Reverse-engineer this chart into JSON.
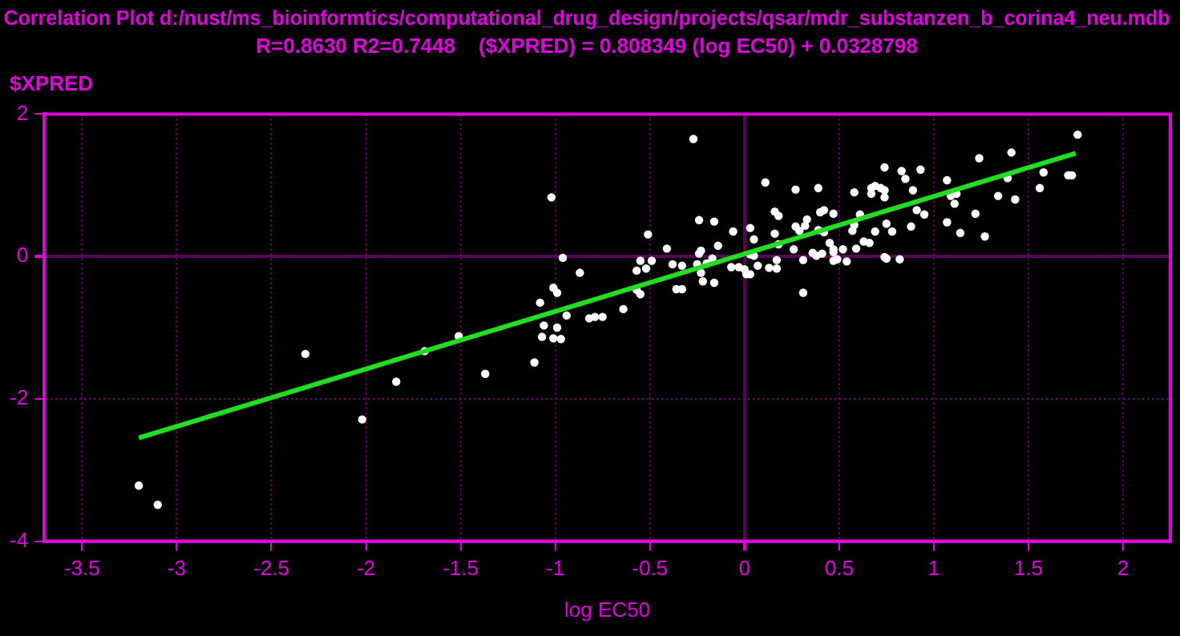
{
  "chart_data": {
    "type": "scatter",
    "title": "Correlation Plot d:/nust/ms_bioinformtics/computational_drug_design/projects/qsar/mdr_substanzen_b_corina4_neu.mdb",
    "subtitle": "R=0.8630 R2=0.7448    ($XPRED) = 0.808349 (log EC50) + 0.0328798",
    "xlabel": "log EC50",
    "ylabel": "$XPRED",
    "xlim": [
      -3.7,
      2.25
    ],
    "ylim": [
      -4,
      2
    ],
    "xticks": [
      -3.5,
      -3,
      -2.5,
      -2,
      -1.5,
      -1,
      -0.5,
      0,
      0.5,
      1,
      1.5,
      2
    ],
    "yticks": [
      -4,
      -2,
      0,
      2
    ],
    "grid": true,
    "legend": false,
    "marker": "circle",
    "series": [
      {
        "color": "#ffffff",
        "x": [
          -3.2,
          -3.1,
          -2.02,
          -1.84,
          -1.37,
          -2.32,
          -1.69,
          -1.51,
          -0.51,
          -0.41,
          -0.96,
          -0.87,
          -0.55,
          -0.49,
          -0.57,
          -0.52,
          -0.38,
          -0.33,
          -0.24,
          -0.23,
          -0.14,
          -0.25,
          -0.2,
          -0.17,
          -0.23,
          -0.22,
          -0.16,
          -0.36,
          -0.33,
          -0.57,
          -0.55,
          -1.01,
          -0.99,
          -1.08,
          -0.94,
          -0.64,
          -0.82,
          -0.79,
          -0.75,
          -1.06,
          -0.99,
          -1.07,
          -1.01,
          -0.97,
          -1.11,
          -0.27,
          -1.02,
          0.11,
          -0.24,
          -0.16,
          -0.06,
          0.03,
          0.05,
          0.16,
          0.16,
          0.03,
          -0.07,
          -0.03,
          0.0,
          0.01,
          0.03,
          0.07,
          0.13,
          0.17,
          1.76,
          1.24,
          1.41,
          0.74,
          0.83,
          0.93,
          0.85,
          1.07,
          1.58,
          1.71,
          1.73,
          1.39,
          1.56,
          1.43,
          1.34,
          0.27,
          0.39,
          0.67,
          0.69,
          0.72,
          0.74,
          0.67,
          0.74,
          0.58,
          0.89,
          1.09,
          1.12,
          1.11,
          1.22,
          1.07,
          1.14,
          1.27,
          0.91,
          0.95,
          0.88,
          0.75,
          0.78,
          0.18,
          0.4,
          0.42,
          0.47,
          0.61,
          0.33,
          0.27,
          0.29,
          0.32,
          0.39,
          0.42,
          0.57,
          0.58,
          0.69,
          0.18,
          0.45,
          0.47,
          0.63,
          0.66,
          0.59,
          0.52,
          0.26,
          0.36,
          0.38,
          0.41,
          0.47,
          0.47,
          0.49,
          0.54,
          0.31,
          0.17,
          0.74,
          0.75,
          0.82,
          0.31,
          0.05
        ],
        "values": [
          -3.22,
          -3.49,
          -2.29,
          -1.76,
          -1.65,
          -1.37,
          -1.33,
          -1.12,
          0.31,
          0.11,
          -0.02,
          -0.23,
          -0.06,
          -0.06,
          -0.2,
          -0.17,
          -0.11,
          -0.13,
          0.04,
          0.08,
          0.15,
          -0.11,
          -0.1,
          -0.03,
          -0.23,
          -0.35,
          -0.37,
          -0.46,
          -0.46,
          -0.47,
          -0.53,
          -0.44,
          -0.51,
          -0.65,
          -0.83,
          -0.74,
          -0.87,
          -0.85,
          -0.85,
          -0.97,
          -1.0,
          -1.13,
          -1.15,
          -1.16,
          -1.49,
          1.65,
          0.83,
          1.04,
          0.51,
          0.49,
          0.35,
          0.4,
          0.24,
          0.32,
          0.63,
          0.03,
          -0.15,
          -0.15,
          -0.18,
          -0.25,
          -0.25,
          -0.13,
          -0.16,
          -0.17,
          1.71,
          1.38,
          1.46,
          1.25,
          1.2,
          1.22,
          1.09,
          1.07,
          1.18,
          1.14,
          1.14,
          1.1,
          0.96,
          0.8,
          0.85,
          0.94,
          0.96,
          0.96,
          0.99,
          0.96,
          0.93,
          0.88,
          0.83,
          0.9,
          0.93,
          0.85,
          0.88,
          0.74,
          0.6,
          0.48,
          0.33,
          0.28,
          0.65,
          0.59,
          0.42,
          0.46,
          0.35,
          0.57,
          0.62,
          0.65,
          0.6,
          0.59,
          0.52,
          0.42,
          0.36,
          0.43,
          0.37,
          0.34,
          0.36,
          0.44,
          0.35,
          0.17,
          0.19,
          0.1,
          0.21,
          0.19,
          0.11,
          0.1,
          0.1,
          0.05,
          0.01,
          0.04,
          0.06,
          -0.06,
          -0.04,
          -0.07,
          -0.05,
          -0.05,
          -0.01,
          -0.03,
          -0.04,
          -0.51,
          0.01
        ]
      },
      {
        "type": "line",
        "color": "#22dd22",
        "marker": "none",
        "x": [
          -3.2,
          1.75
        ],
        "values": [
          -2.55,
          1.45
        ]
      }
    ]
  }
}
